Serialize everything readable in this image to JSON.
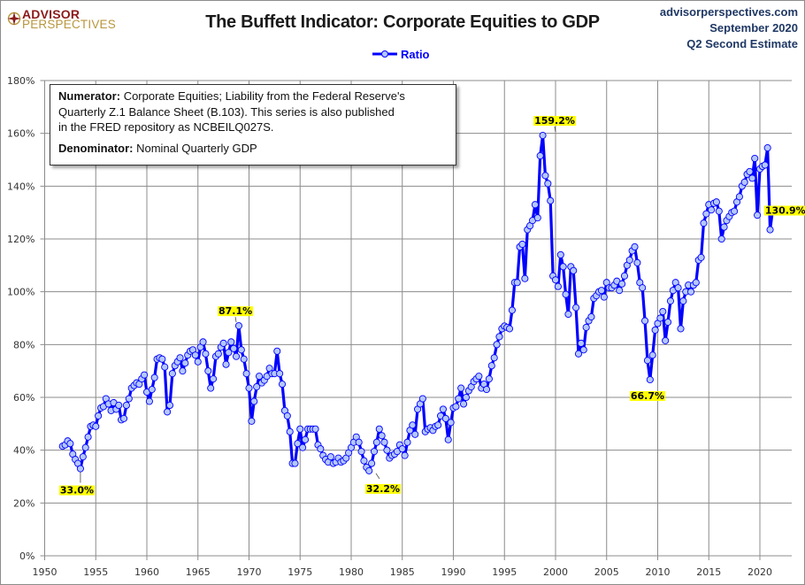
{
  "header": {
    "logo_line1": "ADVISOR",
    "logo_line2": "PERSPECTIVES",
    "title": "The Buffett Indicator: Corporate Equities to GDP",
    "source_line1": "advisorperspectives.com",
    "source_line2": "September 2020",
    "source_line3": "Q2 Second Estimate"
  },
  "note": {
    "numerator_label": "Numerator:",
    "numerator_text_1": " Corporate Equities; Liability from the Federal Reserve's",
    "numerator_text_2": "Quarterly Z.1 Balance Sheet (B.103). This series is also published",
    "numerator_text_3": "in the FRED repository  as NCBEILQ027S.",
    "denominator_label": "Denominator:",
    "denominator_text": " Nominal Quarterly GDP"
  },
  "colors": {
    "line": "#0000ff",
    "marker_fill": "#b4c7ff",
    "label_bg": "#ffff00",
    "grid": "#8c8c8c",
    "logo_red": "#8b1a1a",
    "logo_gold": "#b8963c",
    "source_text": "#1f3864"
  },
  "chart_data": {
    "type": "line",
    "title": "The Buffett Indicator: Corporate Equities to GDP",
    "xlabel": "",
    "ylabel": "",
    "xlim": [
      1950,
      2023
    ],
    "ylim": [
      0,
      180
    ],
    "x_ticks": [
      "1950",
      "1955",
      "1960",
      "1965",
      "1970",
      "1975",
      "1980",
      "1985",
      "1990",
      "1995",
      "2000",
      "2005",
      "2010",
      "2015",
      "2020"
    ],
    "y_ticks": [
      "0%",
      "20%",
      "40%",
      "60%",
      "80%",
      "100%",
      "120%",
      "140%",
      "160%",
      "180%"
    ],
    "grid": true,
    "legend": {
      "position": "top-center",
      "entries": [
        "Ratio"
      ]
    },
    "series": [
      {
        "name": "Ratio",
        "x_start": 1951.75,
        "x_step": 0.25,
        "values": [
          41.5,
          42.0,
          43.5,
          42.5,
          38.5,
          36.5,
          35.0,
          33.0,
          37.5,
          41.0,
          45.0,
          49.0,
          49.5,
          49.0,
          53.0,
          56.0,
          56.5,
          59.5,
          57.5,
          55.0,
          58.0,
          55.5,
          57.0,
          51.5,
          52.0,
          57.0,
          59.5,
          63.5,
          64.5,
          65.5,
          65.0,
          67.0,
          68.5,
          62.0,
          58.5,
          63.0,
          67.5,
          74.5,
          75.0,
          74.5,
          71.5,
          54.5,
          57.0,
          69.0,
          72.0,
          73.5,
          75.0,
          70.0,
          73.0,
          76.0,
          77.5,
          78.0,
          76.0,
          73.5,
          79.0,
          81.0,
          76.5,
          70.0,
          63.5,
          67.0,
          75.5,
          76.5,
          79.0,
          80.5,
          72.5,
          77.0,
          81.0,
          78.5,
          75.5,
          87.1,
          78.0,
          74.5,
          69.0,
          63.5,
          51.0,
          58.5,
          64.0,
          68.0,
          65.5,
          66.5,
          68.0,
          71.0,
          69.0,
          69.0,
          77.5,
          69.0,
          65.0,
          55.0,
          53.0,
          47.0,
          35.0,
          35.0,
          42.5,
          48.0,
          41.0,
          44.0,
          48.0,
          48.0,
          48.0,
          48.0,
          42.0,
          40.5,
          38.0,
          36.5,
          35.5,
          37.5,
          35.0,
          35.5,
          37.0,
          35.5,
          36.0,
          37.0,
          39.0,
          41.0,
          43.0,
          45.0,
          43.0,
          39.5,
          36.0,
          33.5,
          32.2,
          35.0,
          39.5,
          43.0,
          48.0,
          45.5,
          43.0,
          40.0,
          37.0,
          38.0,
          38.5,
          39.5,
          42.0,
          40.5,
          38.0,
          43.0,
          47.5,
          49.5,
          46.0,
          55.5,
          57.5,
          59.5,
          47.0,
          48.0,
          48.5,
          47.5,
          49.0,
          49.5,
          53.0,
          55.5,
          52.0,
          44.0,
          50.5,
          56.0,
          56.5,
          59.5,
          63.5,
          57.5,
          60.0,
          62.5,
          64.0,
          66.0,
          67.0,
          68.0,
          63.5,
          65.0,
          63.0,
          67.0,
          72.0,
          75.0,
          80.0,
          83.0,
          86.0,
          87.0,
          86.5,
          86.0,
          93.0,
          103.5,
          103.5,
          117.0,
          118.0,
          105.0,
          123.5,
          125.0,
          127.0,
          133.0,
          128.0,
          151.5,
          159.2,
          144.0,
          141.0,
          134.5,
          106.0,
          104.5,
          102.0,
          114.0,
          109.5,
          99.0,
          91.5,
          109.5,
          108.0,
          94.0,
          76.5,
          80.5,
          78.0,
          86.5,
          89.0,
          90.5,
          97.5,
          98.5,
          100.0,
          100.5,
          98.0,
          103.5,
          101.5,
          101.5,
          102.5,
          104.0,
          100.5,
          103.0,
          106.0,
          110.0,
          112.0,
          115.5,
          117.0,
          111.0,
          103.5,
          101.5,
          89.0,
          74.0,
          66.7,
          76.0,
          85.5,
          88.0,
          90.0,
          92.5,
          81.5,
          88.5,
          96.5,
          100.5,
          103.5,
          101.5,
          86.0,
          96.5,
          100.0,
          102.5,
          100.0,
          102.5,
          103.5,
          112.0,
          113.0,
          126.0,
          129.5,
          133.0,
          131.0,
          133.5,
          134.0,
          130.5,
          120.0,
          124.5,
          127.0,
          128.5,
          130.0,
          130.5,
          134.0,
          136.0,
          140.0,
          141.5,
          144.5,
          145.5,
          143.0,
          150.5,
          129.0,
          146.5,
          147.5,
          148.0,
          154.5,
          123.5,
          130.9
        ]
      }
    ],
    "annotations": [
      {
        "x": 1953.5,
        "value": 33.0,
        "label": "33.0%"
      },
      {
        "x": 1968.75,
        "value": 87.1,
        "label": "87.1%"
      },
      {
        "x": 1982.25,
        "value": 32.2,
        "label": "32.2%"
      },
      {
        "x": 2000.0,
        "value": 159.2,
        "label": "159.2%"
      },
      {
        "x": 2009.0,
        "value": 66.7,
        "label": "66.7%"
      },
      {
        "x": 2020.25,
        "value": 130.9,
        "label": "130.9%"
      }
    ]
  }
}
